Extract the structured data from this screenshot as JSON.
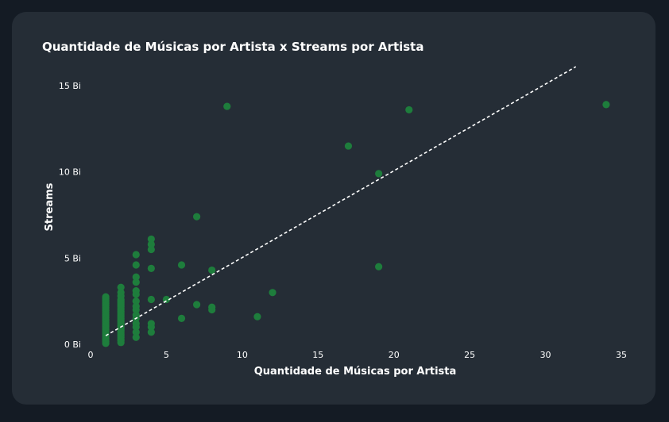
{
  "chart_data": {
    "type": "scatter",
    "title": "Quantidade de Músicas por Artista x Streams por Artista",
    "xlabel": "Quantidade de Músicas por Artista",
    "ylabel": "Streams",
    "xlim": [
      0,
      35
    ],
    "ylim": [
      0,
      15
    ],
    "xticks": [
      0,
      5,
      10,
      15,
      20,
      25,
      30,
      35
    ],
    "yticks": [
      {
        "value": 0,
        "label": "0 Bi"
      },
      {
        "value": 5,
        "label": "5 Bi"
      },
      {
        "value": 10,
        "label": "10 Bi"
      },
      {
        "value": 15,
        "label": "15 Bi"
      }
    ],
    "grid": false,
    "series": [
      {
        "color": "#1e7d3c",
        "points": [
          {
            "x": 1,
            "y": 0.05
          },
          {
            "x": 1,
            "y": 0.15
          },
          {
            "x": 1,
            "y": 0.25
          },
          {
            "x": 1,
            "y": 0.35
          },
          {
            "x": 1,
            "y": 0.45
          },
          {
            "x": 1,
            "y": 0.55
          },
          {
            "x": 1,
            "y": 0.65
          },
          {
            "x": 1,
            "y": 0.75
          },
          {
            "x": 1,
            "y": 0.85
          },
          {
            "x": 1,
            "y": 0.95
          },
          {
            "x": 1,
            "y": 1.05
          },
          {
            "x": 1,
            "y": 1.15
          },
          {
            "x": 1,
            "y": 1.25
          },
          {
            "x": 1,
            "y": 1.35
          },
          {
            "x": 1,
            "y": 1.45
          },
          {
            "x": 1,
            "y": 1.55
          },
          {
            "x": 1,
            "y": 1.65
          },
          {
            "x": 1,
            "y": 1.75
          },
          {
            "x": 1,
            "y": 1.85
          },
          {
            "x": 1,
            "y": 1.95
          },
          {
            "x": 1,
            "y": 2.05
          },
          {
            "x": 1,
            "y": 2.15
          },
          {
            "x": 1,
            "y": 2.25
          },
          {
            "x": 1,
            "y": 2.35
          },
          {
            "x": 1,
            "y": 2.45
          },
          {
            "x": 1,
            "y": 2.55
          },
          {
            "x": 1,
            "y": 2.65
          },
          {
            "x": 1,
            "y": 2.75
          },
          {
            "x": 2,
            "y": 0.1
          },
          {
            "x": 2,
            "y": 0.2
          },
          {
            "x": 2,
            "y": 0.3
          },
          {
            "x": 2,
            "y": 0.4
          },
          {
            "x": 2,
            "y": 0.5
          },
          {
            "x": 2,
            "y": 0.6
          },
          {
            "x": 2,
            "y": 0.7
          },
          {
            "x": 2,
            "y": 0.8
          },
          {
            "x": 2,
            "y": 0.9
          },
          {
            "x": 2,
            "y": 1.0
          },
          {
            "x": 2,
            "y": 1.1
          },
          {
            "x": 2,
            "y": 1.2
          },
          {
            "x": 2,
            "y": 1.3
          },
          {
            "x": 2,
            "y": 1.4
          },
          {
            "x": 2,
            "y": 1.5
          },
          {
            "x": 2,
            "y": 1.6
          },
          {
            "x": 2,
            "y": 1.7
          },
          {
            "x": 2,
            "y": 1.8
          },
          {
            "x": 2,
            "y": 1.9
          },
          {
            "x": 2,
            "y": 2.0
          },
          {
            "x": 2,
            "y": 2.1
          },
          {
            "x": 2,
            "y": 2.2
          },
          {
            "x": 2,
            "y": 2.3
          },
          {
            "x": 2,
            "y": 2.4
          },
          {
            "x": 2,
            "y": 2.5
          },
          {
            "x": 2,
            "y": 2.6
          },
          {
            "x": 2,
            "y": 2.8
          },
          {
            "x": 2,
            "y": 3.0
          },
          {
            "x": 2,
            "y": 3.3
          },
          {
            "x": 3,
            "y": 0.4
          },
          {
            "x": 3,
            "y": 0.7
          },
          {
            "x": 3,
            "y": 1.0
          },
          {
            "x": 3,
            "y": 1.2
          },
          {
            "x": 3,
            "y": 1.5
          },
          {
            "x": 3,
            "y": 1.7
          },
          {
            "x": 3,
            "y": 2.0
          },
          {
            "x": 3,
            "y": 2.2
          },
          {
            "x": 3,
            "y": 2.5
          },
          {
            "x": 3,
            "y": 2.9
          },
          {
            "x": 3,
            "y": 3.1
          },
          {
            "x": 3,
            "y": 3.6
          },
          {
            "x": 3,
            "y": 3.9
          },
          {
            "x": 3,
            "y": 4.6
          },
          {
            "x": 3,
            "y": 5.2
          },
          {
            "x": 4,
            "y": 0.7
          },
          {
            "x": 4,
            "y": 1.0
          },
          {
            "x": 4,
            "y": 1.2
          },
          {
            "x": 4,
            "y": 2.6
          },
          {
            "x": 4,
            "y": 4.4
          },
          {
            "x": 4,
            "y": 5.5
          },
          {
            "x": 4,
            "y": 5.8
          },
          {
            "x": 4,
            "y": 6.1
          },
          {
            "x": 5,
            "y": 2.6
          },
          {
            "x": 6,
            "y": 1.5
          },
          {
            "x": 6,
            "y": 4.6
          },
          {
            "x": 7,
            "y": 2.3
          },
          {
            "x": 7,
            "y": 7.4
          },
          {
            "x": 8,
            "y": 2.0
          },
          {
            "x": 8,
            "y": 2.15
          },
          {
            "x": 8,
            "y": 4.3
          },
          {
            "x": 9,
            "y": 13.8
          },
          {
            "x": 11,
            "y": 1.6
          },
          {
            "x": 12,
            "y": 3.0
          },
          {
            "x": 17,
            "y": 11.5
          },
          {
            "x": 19,
            "y": 4.5
          },
          {
            "x": 19,
            "y": 9.9
          },
          {
            "x": 21,
            "y": 13.6
          },
          {
            "x": 34,
            "y": 13.9
          }
        ]
      }
    ],
    "trendline": {
      "style": "dashed",
      "color": "#ffffff",
      "from": {
        "x": 1,
        "y": 0.5
      },
      "to": {
        "x": 32,
        "y": 16.1
      }
    }
  }
}
